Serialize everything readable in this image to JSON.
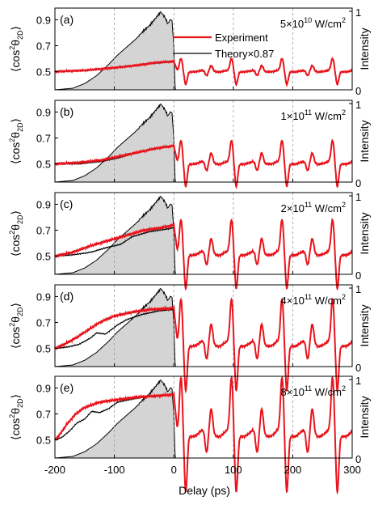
{
  "chart_data": [
    {
      "type": "line",
      "panel_label": "(a)",
      "intensity_label": {
        "mantissa": "5",
        "exponent": "10",
        "unit": "W/cm",
        "unit_sup": "2"
      },
      "legend": [
        {
          "name": "Experiment",
          "color": "#e8141c"
        },
        {
          "name": "Theory×0.87",
          "color": "#000000"
        }
      ],
      "pre_exp": [
        [
          -200,
          0.5
        ],
        [
          -150,
          0.51
        ],
        [
          -100,
          0.53
        ],
        [
          -60,
          0.55
        ],
        [
          -30,
          0.57
        ],
        [
          0,
          0.58
        ]
      ],
      "pre_th": [
        [
          -200,
          0.5
        ],
        [
          -150,
          0.51
        ],
        [
          -100,
          0.53
        ],
        [
          -60,
          0.55
        ],
        [
          -30,
          0.565
        ],
        [
          0,
          0.575
        ]
      ],
      "post_amp": 0.09,
      "post_off": 0.505,
      "noise": 0.006
    },
    {
      "type": "line",
      "panel_label": "(b)",
      "intensity_label": {
        "mantissa": "1",
        "exponent": "11",
        "unit": "W/cm",
        "unit_sup": "2"
      },
      "pre_exp": [
        [
          -200,
          0.5
        ],
        [
          -160,
          0.51
        ],
        [
          -120,
          0.53
        ],
        [
          -90,
          0.56
        ],
        [
          -60,
          0.59
        ],
        [
          -30,
          0.62
        ],
        [
          0,
          0.64
        ]
      ],
      "pre_th": [
        [
          -200,
          0.5
        ],
        [
          -160,
          0.5
        ],
        [
          -120,
          0.52
        ],
        [
          -90,
          0.55
        ],
        [
          -60,
          0.59
        ],
        [
          -30,
          0.62
        ],
        [
          0,
          0.64
        ]
      ],
      "post_amp": 0.16,
      "post_off": 0.51,
      "noise": 0.007
    },
    {
      "type": "line",
      "panel_label": "(c)",
      "intensity_label": {
        "mantissa": "2",
        "exponent": "11",
        "unit": "W/cm",
        "unit_sup": "2"
      },
      "pre_exp": [
        [
          -200,
          0.5
        ],
        [
          -170,
          0.53
        ],
        [
          -140,
          0.58
        ],
        [
          -110,
          0.62
        ],
        [
          -80,
          0.66
        ],
        [
          -50,
          0.7
        ],
        [
          -20,
          0.72
        ],
        [
          0,
          0.74
        ]
      ],
      "pre_th": [
        [
          -200,
          0.5
        ],
        [
          -170,
          0.51
        ],
        [
          -140,
          0.53
        ],
        [
          -110,
          0.57
        ],
        [
          -90,
          0.59
        ],
        [
          -70,
          0.65
        ],
        [
          -40,
          0.69
        ],
        [
          -10,
          0.71
        ],
        [
          0,
          0.72
        ]
      ],
      "post_amp": 0.24,
      "post_off": 0.525,
      "noise": 0.008
    },
    {
      "type": "line",
      "panel_label": "(d)",
      "intensity_label": {
        "mantissa": "4",
        "exponent": "11",
        "unit": "W/cm",
        "unit_sup": "2"
      },
      "pre_exp": [
        [
          -200,
          0.5
        ],
        [
          -185,
          0.53
        ],
        [
          -165,
          0.58
        ],
        [
          -145,
          0.64
        ],
        [
          -125,
          0.7
        ],
        [
          -100,
          0.75
        ],
        [
          -70,
          0.78
        ],
        [
          -40,
          0.8
        ],
        [
          0,
          0.81
        ]
      ],
      "pre_th": [
        [
          -200,
          0.5
        ],
        [
          -180,
          0.51
        ],
        [
          -160,
          0.53
        ],
        [
          -140,
          0.58
        ],
        [
          -130,
          0.62
        ],
        [
          -115,
          0.61
        ],
        [
          -95,
          0.68
        ],
        [
          -80,
          0.72
        ],
        [
          -55,
          0.76
        ],
        [
          -25,
          0.79
        ],
        [
          0,
          0.8
        ]
      ],
      "post_amp": 0.32,
      "post_off": 0.54,
      "noise": 0.008
    },
    {
      "type": "line",
      "panel_label": "(e)",
      "intensity_label": {
        "mantissa": "8",
        "exponent": "11",
        "unit": "W/cm",
        "unit_sup": "2"
      },
      "pre_exp": [
        [
          -200,
          0.5
        ],
        [
          -192,
          0.54
        ],
        [
          -180,
          0.62
        ],
        [
          -165,
          0.7
        ],
        [
          -150,
          0.75
        ],
        [
          -125,
          0.79
        ],
        [
          -95,
          0.81
        ],
        [
          -60,
          0.83
        ],
        [
          -25,
          0.84
        ],
        [
          0,
          0.85
        ]
      ],
      "pre_th": [
        [
          -200,
          0.5
        ],
        [
          -188,
          0.52
        ],
        [
          -175,
          0.57
        ],
        [
          -163,
          0.63
        ],
        [
          -150,
          0.66
        ],
        [
          -138,
          0.72
        ],
        [
          -125,
          0.71
        ],
        [
          -110,
          0.74
        ],
        [
          -95,
          0.79
        ],
        [
          -75,
          0.81
        ],
        [
          -50,
          0.83
        ],
        [
          -20,
          0.84
        ],
        [
          0,
          0.85
        ]
      ],
      "post_amp": 0.4,
      "post_off": 0.555,
      "noise": 0.008
    }
  ],
  "shared": {
    "pulse_envelope": [
      [
        -200,
        0.0
      ],
      [
        -170,
        0.02
      ],
      [
        -150,
        0.08
      ],
      [
        -130,
        0.18
      ],
      [
        -110,
        0.32
      ],
      [
        -95,
        0.44
      ],
      [
        -80,
        0.54
      ],
      [
        -65,
        0.64
      ],
      [
        -50,
        0.75
      ],
      [
        -40,
        0.82
      ],
      [
        -30,
        0.92
      ],
      [
        -22,
        1.0
      ],
      [
        -15,
        0.93
      ],
      [
        -10,
        0.85
      ],
      [
        -6,
        0.9
      ],
      [
        -3,
        0.88
      ],
      [
        0,
        0.55
      ],
      [
        2,
        0.05
      ],
      [
        3,
        0.0
      ],
      [
        300,
        0.0
      ]
    ],
    "revival_period_ps": 85,
    "xlabel": "Delay (ps)",
    "ylabel_left": "⟨cos²θ2D⟩",
    "ylabel_right": "Intensity",
    "xlim": [
      -200,
      300
    ],
    "ylim": [
      0.36,
      0.99
    ],
    "ylim_right": [
      0,
      1
    ],
    "xticks": [
      "-200",
      "-100",
      "0",
      "100",
      "200",
      "300"
    ],
    "yticks": [
      "0.5",
      "0.7",
      "0.9"
    ],
    "right_ticks": [
      "0",
      "1"
    ],
    "colors": {
      "experiment": "#e8141c",
      "theory": "#000000",
      "pulse_fill": "#d4d4d4",
      "pulse_edge": "#000000",
      "grid_dash": "#9a9a9a"
    }
  },
  "axis_text": {
    "xlabel": "Delay (ps)",
    "ylabel_main": "⟨cos",
    "ylabel_sup": "2",
    "ylabel_theta": "θ",
    "ylabel_sub": "2D",
    "ylabel_close": "⟩",
    "right_label": "Intensity"
  }
}
